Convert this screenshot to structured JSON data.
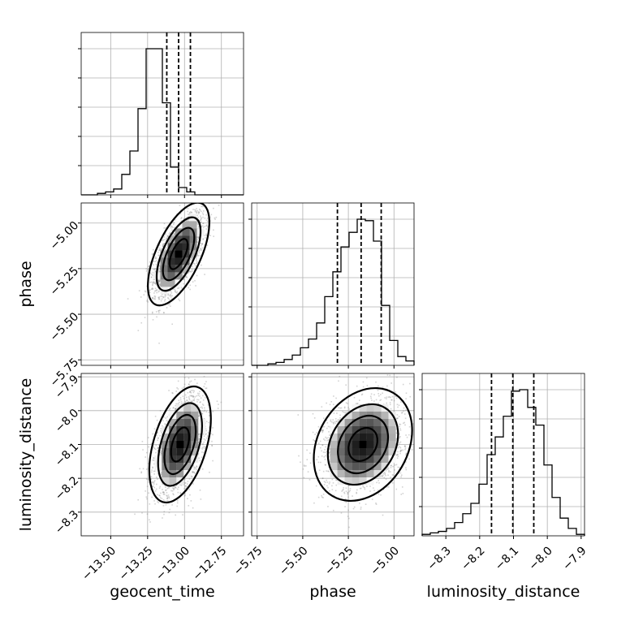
{
  "chart_data": {
    "type": "corner",
    "parameters": [
      "geocent_time",
      "phase",
      "luminosity_distance"
    ],
    "axis_labels": {
      "geocent_time": "geocent_time",
      "phase": "phase",
      "luminosity_distance": "luminosity_distance"
    },
    "ranges": {
      "geocent_time": [
        -13.7,
        -12.6
      ],
      "phase": [
        -5.78,
        -4.89
      ],
      "luminosity_distance": [
        -8.37,
        -7.89
      ]
    },
    "ticks": {
      "geocent_time": [
        -13.5,
        -13.25,
        -13.0,
        -12.75
      ],
      "phase": [
        -5.75,
        -5.5,
        -5.25,
        -5.0
      ],
      "luminosity_distance": [
        -8.3,
        -8.2,
        -8.1,
        -8.0,
        -7.9
      ]
    },
    "tick_labels": {
      "geocent_time": [
        "−13.50",
        "−13.25",
        "−13.00",
        "−12.75"
      ],
      "phase": [
        "−5.75",
        "−5.50",
        "−5.25",
        "−5.00"
      ],
      "luminosity_distance": [
        "−8.3",
        "−8.2",
        "−8.1",
        "−8.0",
        "−7.9"
      ]
    },
    "quantiles": {
      "geocent_time": [
        -13.12,
        -13.04,
        -12.96
      ],
      "phase": [
        -5.31,
        -5.18,
        -5.07
      ],
      "luminosity_distance": [
        -8.165,
        -8.102,
        -8.04
      ]
    },
    "histograms": {
      "geocent_time": {
        "edges_range": [
          -13.7,
          -12.6
        ],
        "counts": [
          0,
          0,
          1,
          2,
          4,
          14,
          30,
          59,
          100,
          100,
          63,
          19,
          5,
          2,
          0,
          0,
          0,
          0,
          0,
          0
        ]
      },
      "phase": {
        "edges_range": [
          -5.78,
          -4.89
        ],
        "counts": [
          0,
          0,
          1,
          2,
          4,
          7,
          12,
          18,
          29,
          47,
          64,
          81,
          91,
          100,
          99,
          85,
          41,
          17,
          6,
          3
        ]
      },
      "luminosity_distance": {
        "edges_range": [
          -8.37,
          -7.89
        ],
        "counts": [
          1,
          2,
          3,
          5,
          9,
          15,
          22,
          35,
          55,
          67,
          81,
          98,
          99,
          87,
          75,
          48,
          26,
          12,
          5,
          1
        ]
      }
    },
    "density_2d": [
      {
        "x": "geocent_time",
        "y": "phase",
        "mean": [
          -13.04,
          -5.17
        ],
        "sd": [
          0.085,
          0.115
        ],
        "rho": 0.62
      },
      {
        "x": "geocent_time",
        "y": "luminosity_distance",
        "mean": [
          -13.03,
          -8.1
        ],
        "sd": [
          0.085,
          0.07
        ],
        "rho": 0.45
      },
      {
        "x": "phase",
        "y": "luminosity_distance",
        "mean": [
          -5.17,
          -8.1
        ],
        "sd": [
          0.11,
          0.068
        ],
        "rho": 0.25
      }
    ],
    "grid": true,
    "colors": {
      "line": "#000000",
      "grid": "#b0b0b0",
      "points": "#808080",
      "spine": "#000000"
    }
  }
}
